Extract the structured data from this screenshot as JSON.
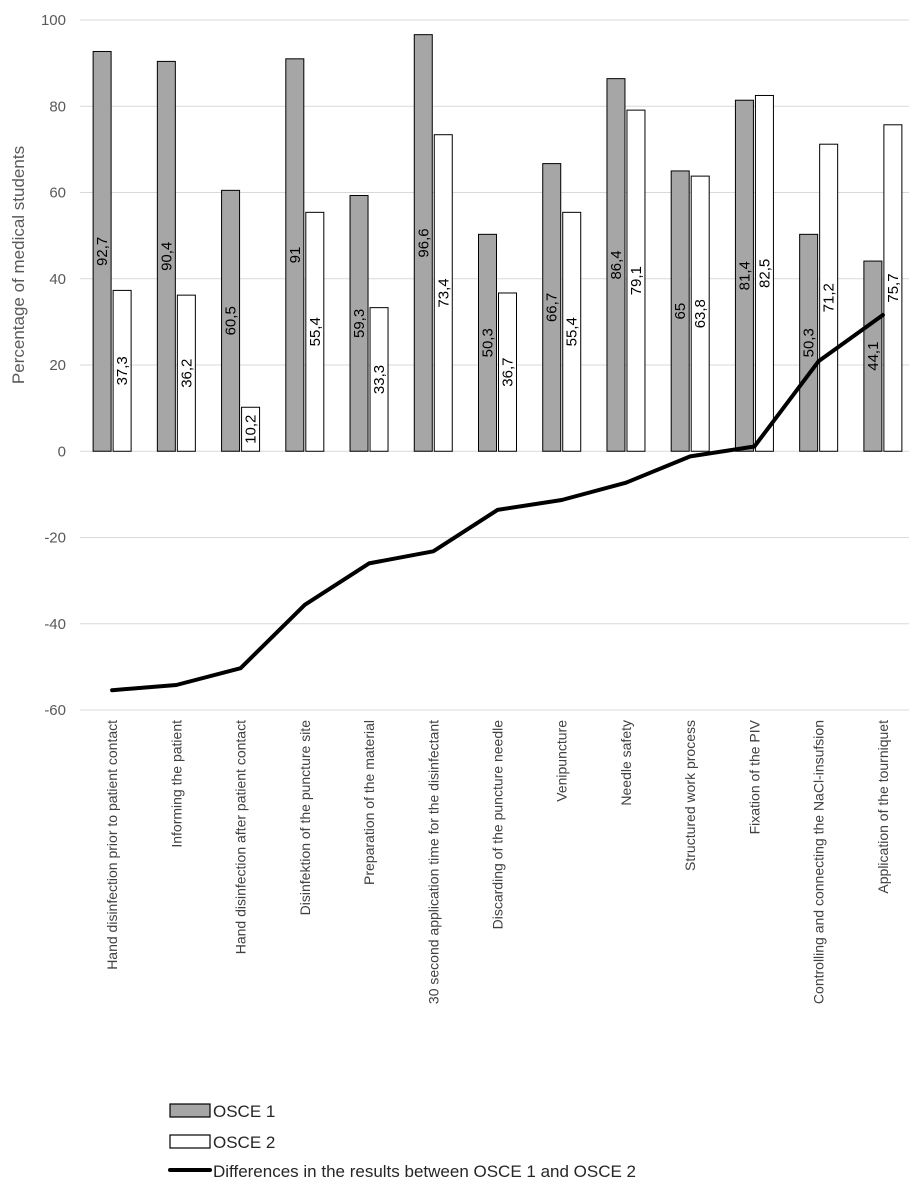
{
  "chart_data": {
    "type": "bar",
    "ylabel": "Percentage of medical students",
    "ylim": [
      -60,
      100
    ],
    "yticks": [
      -60,
      -40,
      -20,
      0,
      20,
      40,
      60,
      80,
      100
    ],
    "grid": true,
    "legend_position": "bottom",
    "categories": [
      "Hand disinfection prior to patient contact",
      "Informing the patient",
      "Hand disinfection after patient contact",
      "Disinfektion of the puncture site",
      "Preparation of the material",
      "30 second application time for the disinfectant",
      "Discarding of the puncture needle",
      "Venipuncture",
      "Needle safety",
      "Structured work process",
      "Fixation of the PIV",
      "Controlling and connecting the NaCl-insufsion",
      "Application of the tourniquet"
    ],
    "series": [
      {
        "name": "OSCE 1",
        "kind": "bar",
        "color": "#a6a6a6",
        "values": [
          92.7,
          90.4,
          60.5,
          91,
          59.3,
          96.6,
          50.3,
          66.7,
          86.4,
          65,
          81.4,
          50.3,
          44.1
        ],
        "labels": [
          "92,7",
          "90,4",
          "60,5",
          "91",
          "59,3",
          "96,6",
          "50,3",
          "66,7",
          "86,4",
          "65",
          "81,4",
          "50,3",
          "44,1"
        ]
      },
      {
        "name": "OSCE 2",
        "kind": "bar",
        "color": "#ffffff",
        "values": [
          37.3,
          36.2,
          10.2,
          55.4,
          33.3,
          73.4,
          36.7,
          55.4,
          79.1,
          63.8,
          82.5,
          71.2,
          75.7
        ],
        "labels": [
          "37,3",
          "36,2",
          "10,2",
          "55,4",
          "33,3",
          "73,4",
          "36,7",
          "55,4",
          "79,1",
          "63,8",
          "82,5",
          "71,2",
          "75,7"
        ]
      },
      {
        "name": "Differences in the results between OSCE 1 and OSCE 2",
        "kind": "line",
        "color": "#000000",
        "values": [
          -55.4,
          -54.2,
          -50.3,
          -35.6,
          -26,
          -23.2,
          -13.6,
          -11.3,
          -7.3,
          -1.2,
          1.1,
          20.9,
          31.6
        ]
      }
    ]
  }
}
